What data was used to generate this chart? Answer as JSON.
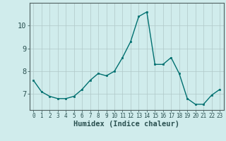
{
  "x": [
    0,
    1,
    2,
    3,
    4,
    5,
    6,
    7,
    8,
    9,
    10,
    11,
    12,
    13,
    14,
    15,
    16,
    17,
    18,
    19,
    20,
    21,
    22,
    23
  ],
  "y": [
    7.6,
    7.1,
    6.9,
    6.8,
    6.8,
    6.9,
    7.2,
    7.6,
    7.9,
    7.8,
    8.0,
    8.6,
    9.3,
    10.4,
    10.6,
    8.3,
    8.3,
    8.6,
    7.9,
    6.8,
    6.55,
    6.55,
    6.95,
    7.2
  ],
  "xlabel": "Humidex (Indice chaleur)",
  "ylim": [
    6.3,
    11.0
  ],
  "xlim": [
    -0.5,
    23.5
  ],
  "yticks": [
    7,
    8,
    9,
    10
  ],
  "xticks": [
    0,
    1,
    2,
    3,
    4,
    5,
    6,
    7,
    8,
    9,
    10,
    11,
    12,
    13,
    14,
    15,
    16,
    17,
    18,
    19,
    20,
    21,
    22,
    23
  ],
  "line_color": "#007070",
  "marker_color": "#007070",
  "bg_color": "#d0ecec",
  "grid_color_major": "#b0c8c8",
  "grid_color_minor": "#c8dede",
  "axes_color": "#506060",
  "tick_color": "#2a5050",
  "xlabel_color": "#2a5050",
  "xlabel_fontsize": 7.5,
  "ytick_fontsize": 7.5,
  "xtick_fontsize": 5.5
}
